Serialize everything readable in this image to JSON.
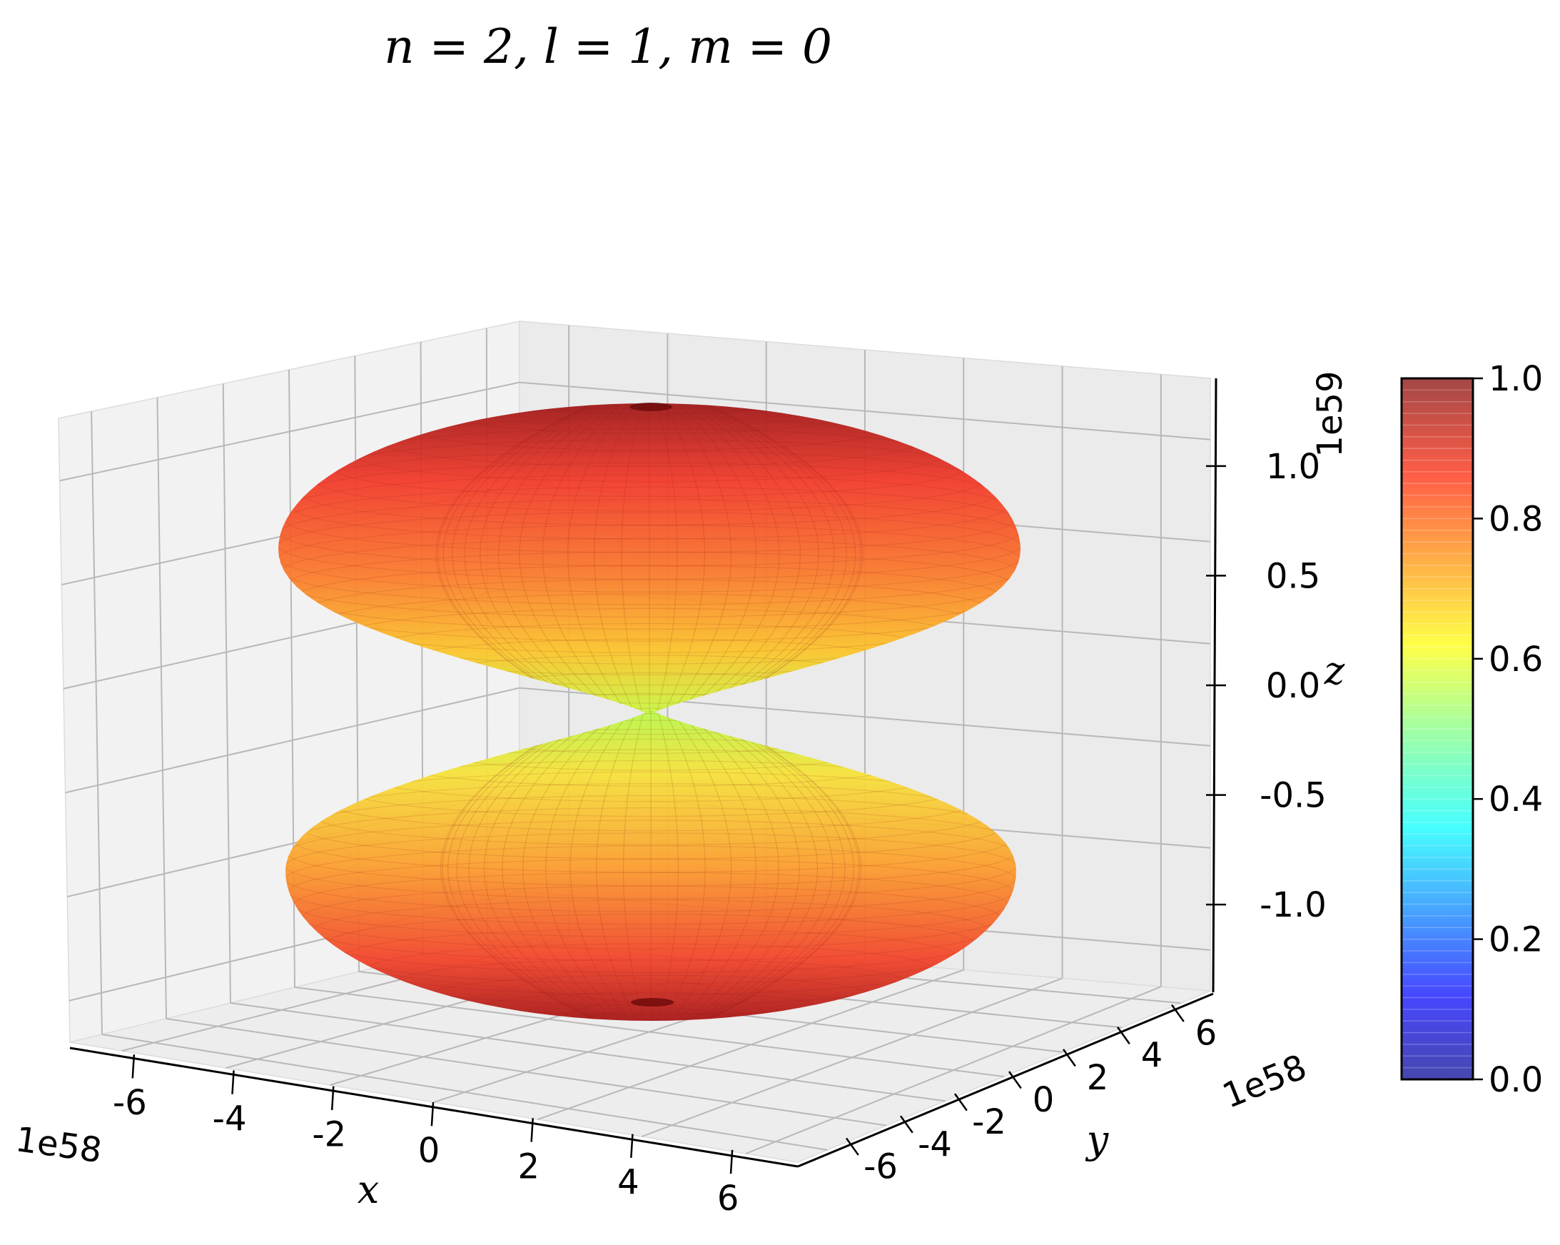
{
  "chart_data": {
    "type": "surface3d",
    "title": "n = 2, l = 1, m = 0",
    "surface": {
      "description": "orbital lobes",
      "shape": "two lobes along z, pinched at z = 0",
      "colormap": "jet",
      "alpha": 0.7,
      "color_range": [
        0.0,
        1.0
      ]
    },
    "x_axis": {
      "label": "x",
      "ticks": [
        "-6",
        "-4",
        "-2",
        "0",
        "2",
        "4",
        "6"
      ],
      "offset": "1e58",
      "range": [
        -7,
        7
      ]
    },
    "y_axis": {
      "label": "y",
      "ticks": [
        "-6",
        "-4",
        "-2",
        "0",
        "2",
        "4",
        "6"
      ],
      "offset": "1e58",
      "range": [
        -7,
        7
      ]
    },
    "z_axis": {
      "label": "z",
      "ticks": [
        "-1.0",
        "-0.5",
        "0.0",
        "0.5",
        "1.0"
      ],
      "offset": "1e59",
      "range": [
        -1.4,
        1.4
      ]
    },
    "colorbar": {
      "ticks": [
        "0.0",
        "0.2",
        "0.4",
        "0.6",
        "0.8",
        "1.0"
      ],
      "range": [
        0.0,
        1.0
      ]
    },
    "grid": true
  }
}
